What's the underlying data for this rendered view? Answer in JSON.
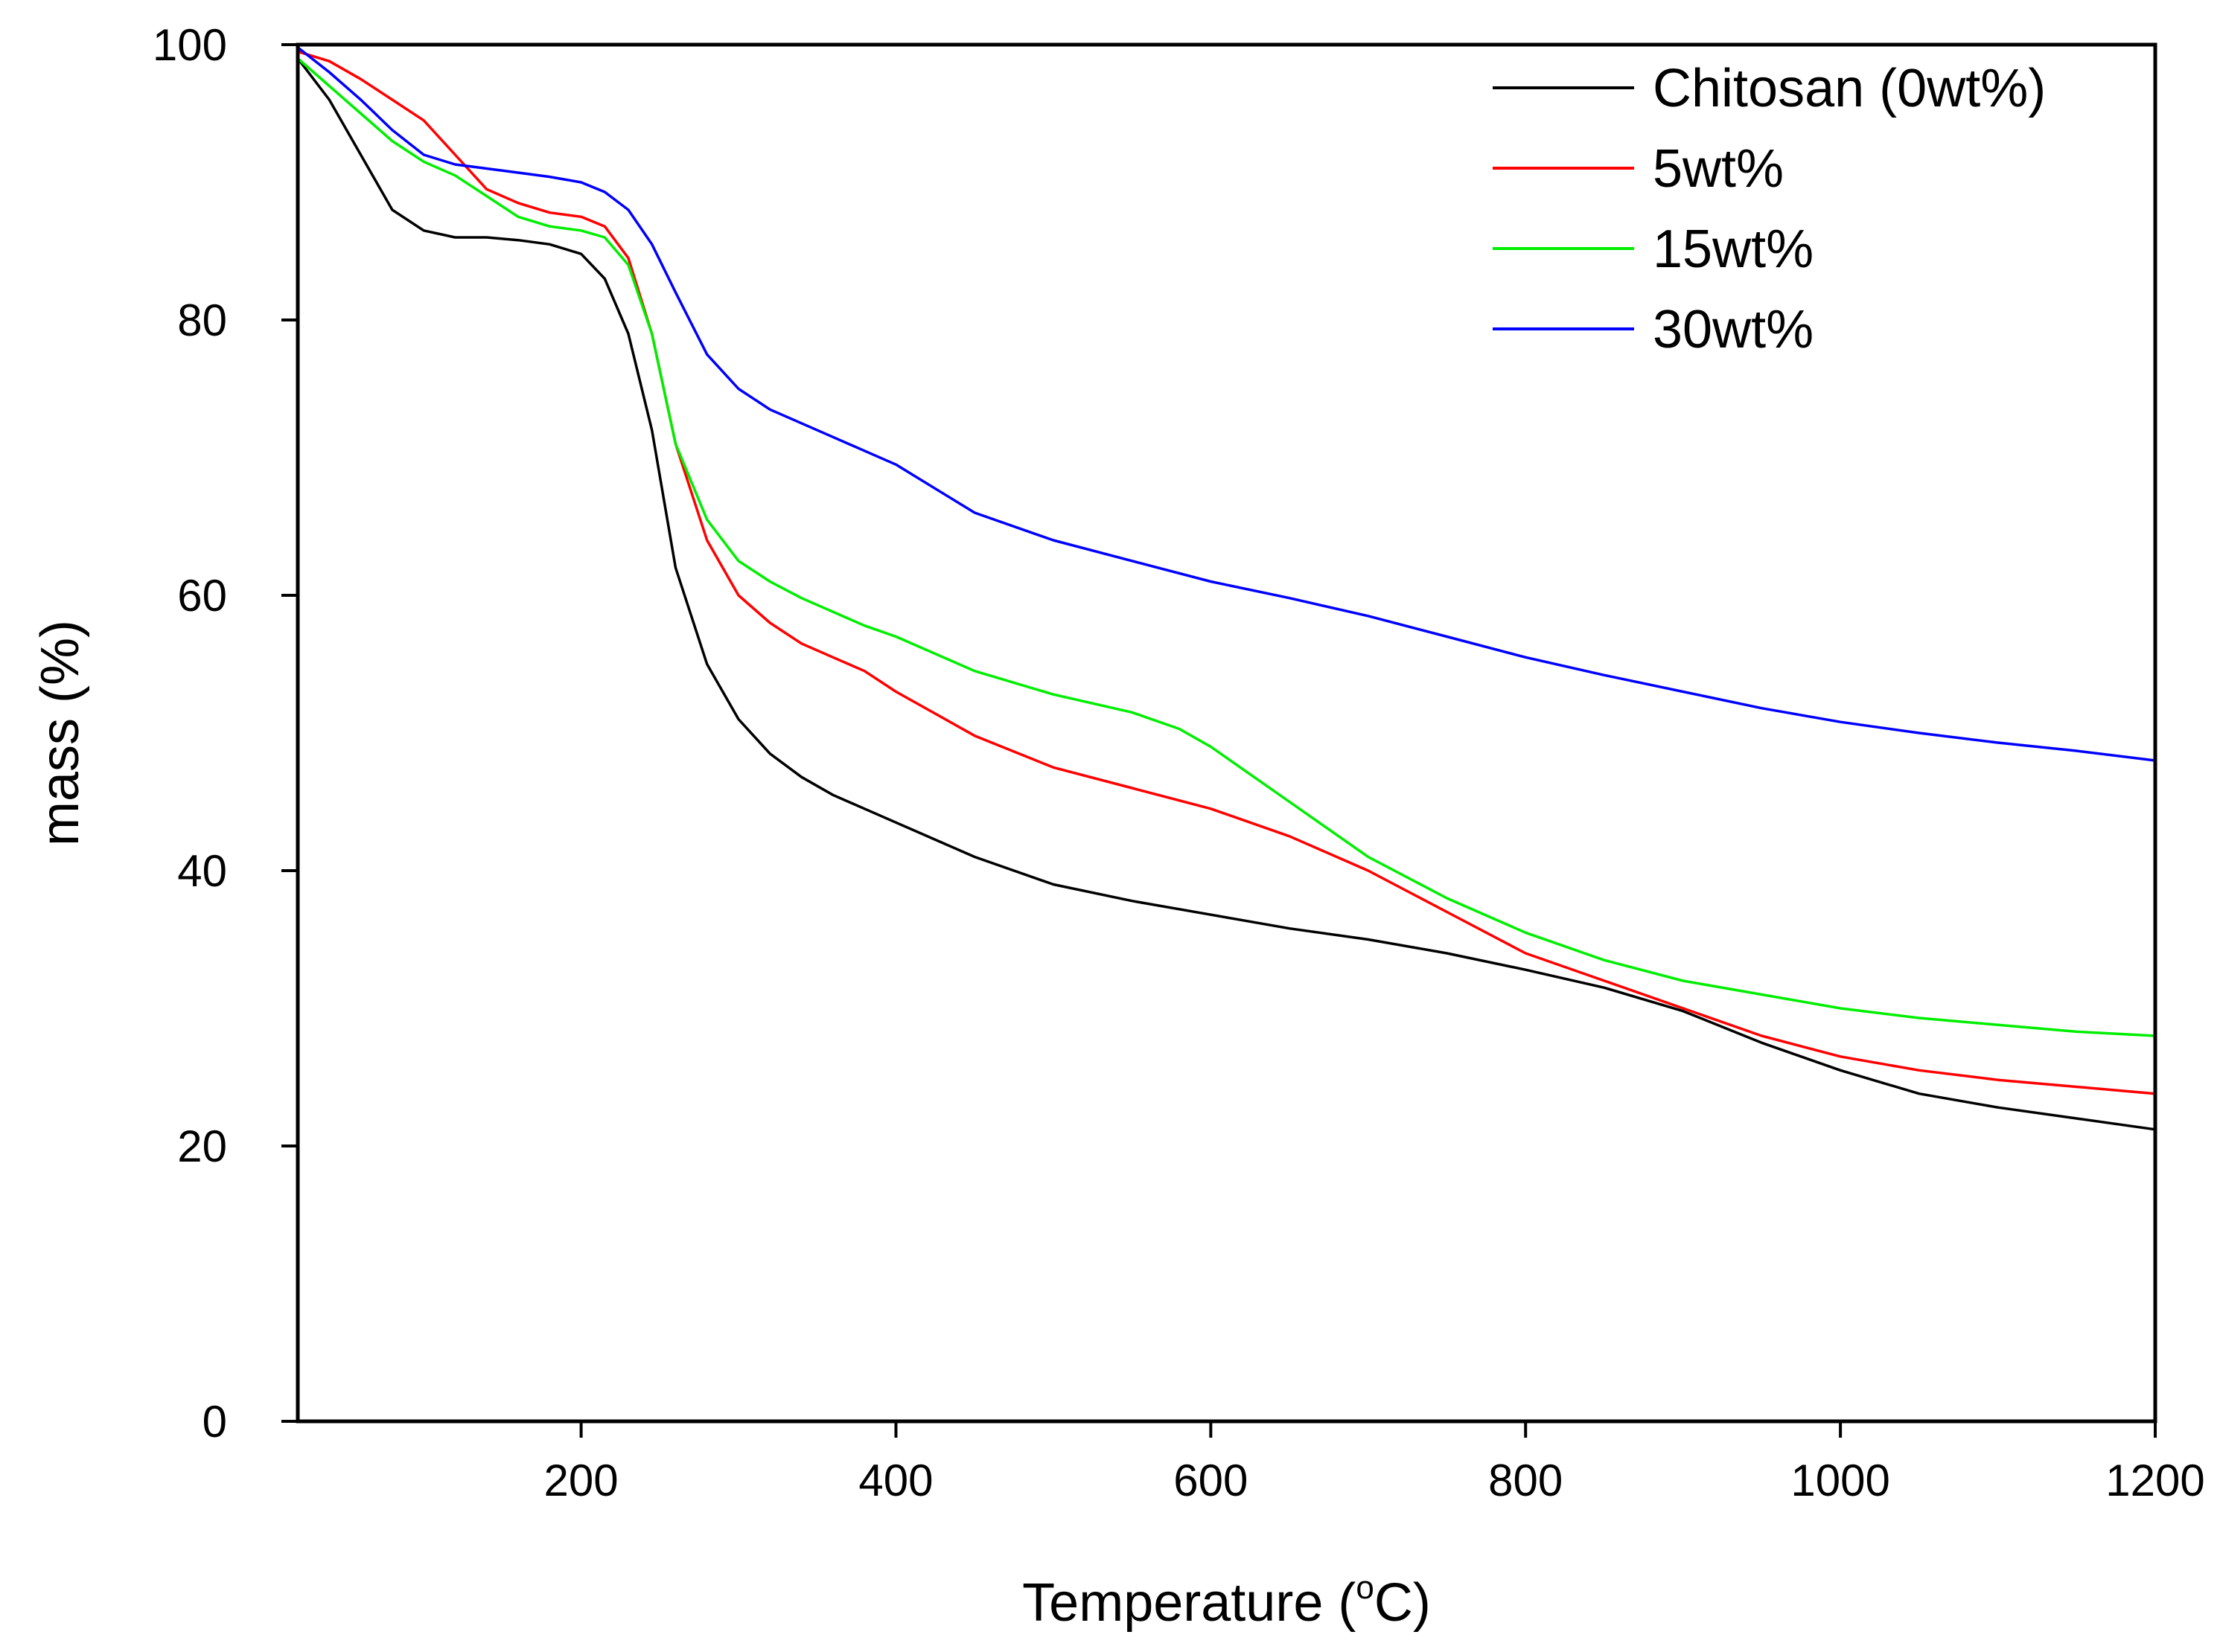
{
  "chart_data": {
    "type": "line",
    "title": "",
    "xlabel": "Temperature (",
    "xlabel_sup": "o",
    "xlabel_suffix": "C)",
    "ylabel": "mass (%)",
    "xlim": [
      20,
      1200
    ],
    "ylim": [
      0,
      100
    ],
    "xticks": [
      200,
      400,
      600,
      800,
      1000,
      1200
    ],
    "yticks": [
      0,
      20,
      40,
      60,
      80,
      100
    ],
    "legend_position": "top-right",
    "series": [
      {
        "name": "Chitosan (0wt%)",
        "color": "#000000",
        "x": [
          20,
          40,
          60,
          80,
          100,
          120,
          140,
          160,
          180,
          200,
          215,
          230,
          245,
          260,
          280,
          300,
          320,
          340,
          360,
          380,
          400,
          450,
          500,
          550,
          600,
          650,
          700,
          750,
          800,
          850,
          900,
          950,
          1000,
          1050,
          1100,
          1150,
          1200
        ],
        "y": [
          99,
          96,
          92,
          88,
          86.5,
          86,
          86,
          85.8,
          85.5,
          84.8,
          83,
          79,
          72,
          62,
          55,
          51,
          48.5,
          46.8,
          45.5,
          44.5,
          43.5,
          41,
          39,
          37.8,
          36.8,
          35.8,
          35,
          34,
          32.8,
          31.5,
          29.8,
          27.5,
          25.5,
          23.8,
          22.8,
          22,
          21.2
        ]
      },
      {
        "name": "5wt%",
        "color": "#ff0000",
        "x": [
          20,
          40,
          60,
          80,
          100,
          120,
          140,
          160,
          180,
          200,
          215,
          230,
          245,
          260,
          280,
          300,
          320,
          340,
          360,
          380,
          400,
          450,
          500,
          550,
          600,
          650,
          700,
          750,
          800,
          850,
          900,
          950,
          1000,
          1050,
          1100,
          1150,
          1200
        ],
        "y": [
          99.5,
          98.8,
          97.5,
          96,
          94.5,
          92,
          89.5,
          88.5,
          87.8,
          87.5,
          86.8,
          84.5,
          79,
          71,
          64,
          60,
          58,
          56.5,
          55.5,
          54.5,
          53,
          49.8,
          47.5,
          46,
          44.5,
          42.5,
          40,
          37,
          34,
          32,
          30,
          28,
          26.5,
          25.5,
          24.8,
          24.3,
          23.8
        ]
      },
      {
        "name": "15wt%",
        "color": "#00ee00",
        "x": [
          20,
          40,
          60,
          80,
          100,
          120,
          140,
          160,
          180,
          200,
          215,
          230,
          245,
          260,
          280,
          300,
          320,
          340,
          360,
          380,
          400,
          450,
          500,
          550,
          580,
          600,
          650,
          700,
          750,
          800,
          850,
          900,
          950,
          1000,
          1050,
          1100,
          1150,
          1200
        ],
        "y": [
          99,
          97,
          95,
          93,
          91.5,
          90.5,
          89,
          87.5,
          86.8,
          86.5,
          86,
          84,
          79,
          71,
          65.5,
          62.5,
          61,
          59.8,
          58.8,
          57.8,
          57,
          54.5,
          52.8,
          51.5,
          50.3,
          49,
          45,
          41,
          38,
          35.5,
          33.5,
          32,
          31,
          30,
          29.3,
          28.8,
          28.3,
          28
        ]
      },
      {
        "name": "30wt%",
        "color": "#0000ff",
        "x": [
          20,
          40,
          60,
          80,
          100,
          120,
          140,
          160,
          180,
          200,
          215,
          230,
          245,
          260,
          280,
          300,
          320,
          340,
          360,
          380,
          400,
          450,
          500,
          550,
          600,
          650,
          700,
          750,
          800,
          850,
          900,
          950,
          1000,
          1050,
          1100,
          1150,
          1200
        ],
        "y": [
          99.8,
          98,
          96,
          93.8,
          92,
          91.3,
          91,
          90.7,
          90.4,
          90,
          89.3,
          88,
          85.5,
          82,
          77.5,
          75,
          73.5,
          72.5,
          71.5,
          70.5,
          69.5,
          66,
          64,
          62.5,
          61,
          59.8,
          58.5,
          57,
          55.5,
          54.2,
          53,
          51.8,
          50.8,
          50,
          49.3,
          48.7,
          48
        ]
      }
    ]
  }
}
